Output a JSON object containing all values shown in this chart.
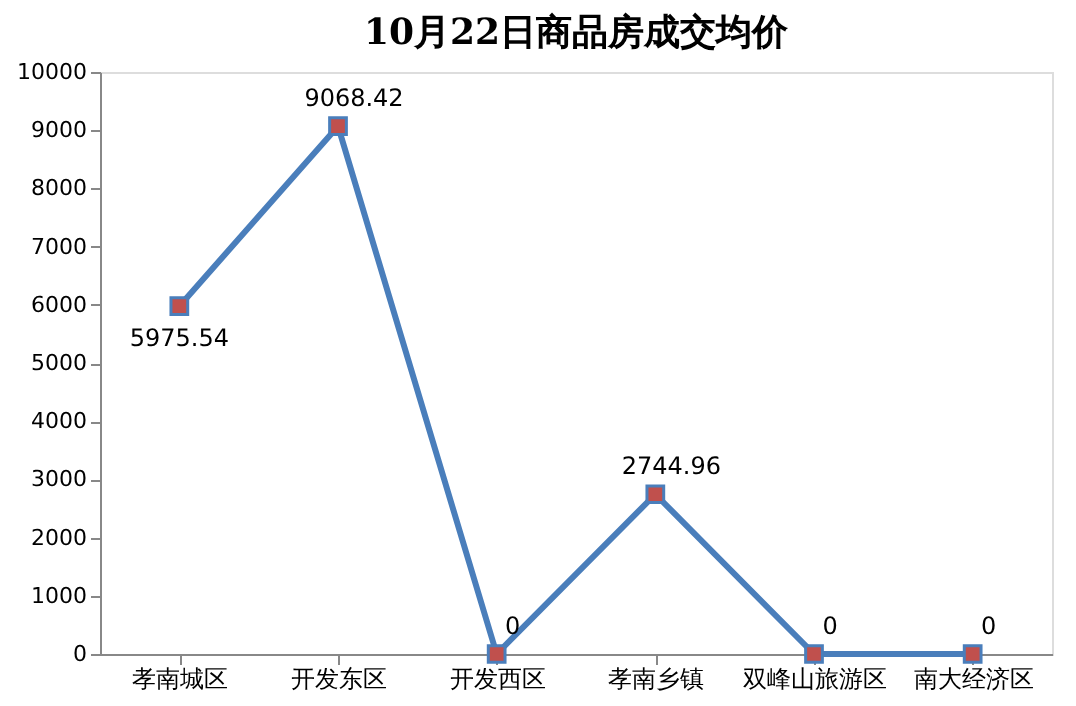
{
  "chart_data": {
    "type": "line",
    "title": "10月22日商品房成交均价",
    "categories": [
      "孝南城区",
      "开发东区",
      "开发西区",
      "孝南乡镇",
      "双峰山旅游区",
      "南大经济区"
    ],
    "series": [
      {
        "color": "#4a7ebb",
        "values": [
          5975.54,
          9068.42,
          0,
          2744.96,
          0,
          0
        ]
      }
    ],
    "ylim": [
      0,
      10000
    ],
    "yticks": [
      0,
      1000,
      2000,
      3000,
      4000,
      5000,
      6000,
      7000,
      8000,
      9000,
      10000
    ],
    "grid": false,
    "marker": "square",
    "data_labels": true
  }
}
